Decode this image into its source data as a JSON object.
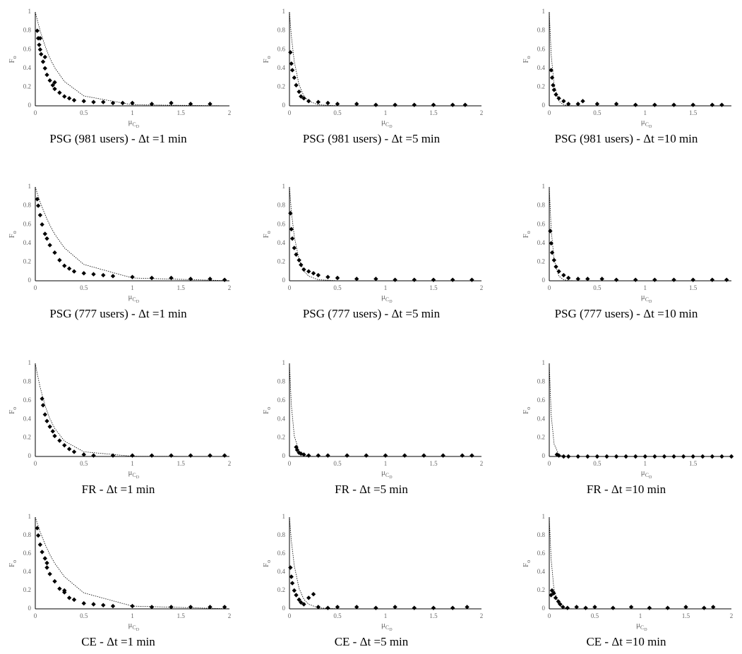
{
  "chart_data": [
    {
      "type": "scatter",
      "title": "PSG (981 users) - Δt =1 min",
      "y_label": "F",
      "y_label_sub": "o",
      "x_label": "μ",
      "x_label_sub": "C",
      "x_label_subsub": "D",
      "xlim": [
        0,
        2
      ],
      "xticks": [
        0,
        0.5,
        1,
        1.5,
        2
      ],
      "ylim": [
        0,
        1
      ],
      "yticks": [
        0,
        0.2,
        0.4,
        0.6,
        0.8,
        1
      ],
      "color": "#000000",
      "points": {
        "x": [
          0.02,
          0.03,
          0.04,
          0.05,
          0.06,
          0.08,
          0.1,
          0.12,
          0.15,
          0.18,
          0.2,
          0.25,
          0.3,
          0.35,
          0.4,
          0.5,
          0.6,
          0.7,
          0.8,
          0.9,
          1.0,
          1.2,
          1.4,
          1.6,
          1.8,
          0.05,
          0.1,
          0.2
        ],
        "values": [
          0.8,
          0.72,
          0.65,
          0.6,
          0.55,
          0.47,
          0.4,
          0.33,
          0.27,
          0.22,
          0.18,
          0.14,
          0.1,
          0.08,
          0.06,
          0.05,
          0.04,
          0.04,
          0.03,
          0.03,
          0.03,
          0.02,
          0.03,
          0.02,
          0.02,
          0.72,
          0.52,
          0.25
        ]
      },
      "fit": {
        "x": [
          0,
          0.02,
          0.05,
          0.1,
          0.15,
          0.2,
          0.3,
          0.5,
          1,
          2
        ],
        "values": [
          1,
          0.914,
          0.799,
          0.638,
          0.509,
          0.407,
          0.259,
          0.105,
          0.011,
          0
        ]
      }
    },
    {
      "type": "scatter",
      "title": "PSG (981 users) - Δt =5 min",
      "y_label": "F",
      "y_label_sub": "o",
      "x_label": "μ",
      "x_label_sub": "C",
      "x_label_subsub": "D",
      "xlim": [
        0,
        2
      ],
      "xticks": [
        0,
        0.5,
        1,
        1.5,
        2
      ],
      "ylim": [
        0,
        1
      ],
      "yticks": [
        0,
        0.2,
        0.4,
        0.6,
        0.8,
        1
      ],
      "color": "#000000",
      "points": {
        "x": [
          0.01,
          0.02,
          0.03,
          0.05,
          0.07,
          0.1,
          0.12,
          0.15,
          0.2,
          0.3,
          0.4,
          0.5,
          0.7,
          0.9,
          1.1,
          1.3,
          1.5,
          1.7,
          1.83
        ],
        "values": [
          0.57,
          0.45,
          0.38,
          0.3,
          0.22,
          0.15,
          0.1,
          0.08,
          0.05,
          0.04,
          0.03,
          0.02,
          0.02,
          0.01,
          0.01,
          0.01,
          0.01,
          0.01,
          0.01
        ]
      },
      "fit": {
        "x": [
          0,
          0.02,
          0.05,
          0.1,
          0.15,
          0.2,
          0.3,
          0.5,
          1,
          2
        ],
        "values": [
          1,
          0.741,
          0.472,
          0.223,
          0.105,
          0.05,
          0.011,
          0.001,
          0,
          0
        ]
      }
    },
    {
      "type": "scatter",
      "title": "PSG (981 users) - Δt =10 min",
      "y_label": "F",
      "y_label_sub": "o",
      "x_label": "μ",
      "x_label_sub": "C",
      "x_label_subsub": "D",
      "xlim": [
        0,
        1.9
      ],
      "xticks": [
        0,
        0.5,
        1,
        1.5
      ],
      "ylim": [
        0,
        1
      ],
      "yticks": [
        0,
        0.2,
        0.4,
        0.6,
        0.8,
        1
      ],
      "color": "#000000",
      "points": {
        "x": [
          0.02,
          0.03,
          0.04,
          0.05,
          0.07,
          0.1,
          0.15,
          0.2,
          0.3,
          0.35,
          0.5,
          0.7,
          0.9,
          1.1,
          1.3,
          1.5,
          1.7,
          1.8
        ],
        "values": [
          0.38,
          0.3,
          0.22,
          0.17,
          0.12,
          0.08,
          0.05,
          0.02,
          0.02,
          0.05,
          0.02,
          0.02,
          0.01,
          0.01,
          0.01,
          0.01,
          0.01,
          0.01
        ]
      },
      "fit": {
        "x": [
          0,
          0.02,
          0.05,
          0.1,
          0.15,
          0.2,
          0.3,
          0.5,
          1,
          1.9
        ],
        "values": [
          1,
          0.549,
          0.223,
          0.05,
          0.011,
          0.002,
          0,
          0,
          0,
          0
        ]
      }
    },
    {
      "type": "scatter",
      "title": "PSG (777 users) - Δt =1 min",
      "y_label": "F",
      "y_label_sub": "o",
      "x_label": "μ",
      "x_label_sub": "C",
      "x_label_subsub": "D",
      "xlim": [
        0,
        2
      ],
      "xticks": [
        0,
        0.5,
        1,
        1.5,
        2
      ],
      "ylim": [
        0,
        1
      ],
      "yticks": [
        0,
        0.2,
        0.4,
        0.6,
        0.8,
        1
      ],
      "color": "#000000",
      "points": {
        "x": [
          0.02,
          0.03,
          0.05,
          0.07,
          0.1,
          0.12,
          0.15,
          0.2,
          0.25,
          0.3,
          0.35,
          0.4,
          0.5,
          0.6,
          0.7,
          0.8,
          1.0,
          1.2,
          1.4,
          1.6,
          1.8,
          1.95
        ],
        "values": [
          0.87,
          0.8,
          0.7,
          0.6,
          0.5,
          0.45,
          0.38,
          0.3,
          0.22,
          0.16,
          0.13,
          0.1,
          0.08,
          0.07,
          0.06,
          0.05,
          0.04,
          0.03,
          0.03,
          0.02,
          0.02,
          0.01
        ]
      },
      "fit": {
        "x": [
          0,
          0.02,
          0.05,
          0.1,
          0.15,
          0.2,
          0.3,
          0.5,
          1,
          2
        ],
        "values": [
          1,
          0.932,
          0.839,
          0.705,
          0.592,
          0.497,
          0.35,
          0.174,
          0.03,
          0.001
        ]
      }
    },
    {
      "type": "scatter",
      "title": "PSG (777 users) - Δt =5 min",
      "y_label": "F",
      "y_label_sub": "o",
      "x_label": "μ",
      "x_label_sub": "C",
      "x_label_subsub": "D",
      "xlim": [
        0,
        2
      ],
      "xticks": [
        0,
        0.5,
        1,
        1.5,
        2
      ],
      "ylim": [
        0,
        1
      ],
      "yticks": [
        0,
        0.2,
        0.4,
        0.6,
        0.8,
        1
      ],
      "color": "#000000",
      "points": {
        "x": [
          0.01,
          0.02,
          0.03,
          0.05,
          0.07,
          0.1,
          0.12,
          0.15,
          0.2,
          0.25,
          0.3,
          0.4,
          0.5,
          0.7,
          0.9,
          1.1,
          1.3,
          1.5,
          1.7,
          1.9
        ],
        "values": [
          0.72,
          0.55,
          0.45,
          0.35,
          0.28,
          0.22,
          0.17,
          0.12,
          0.1,
          0.08,
          0.06,
          0.04,
          0.03,
          0.02,
          0.02,
          0.01,
          0.01,
          0.01,
          0.01,
          0.01
        ]
      },
      "fit": {
        "x": [
          0,
          0.02,
          0.05,
          0.1,
          0.15,
          0.2,
          0.3,
          0.5,
          1,
          2
        ],
        "values": [
          1,
          0.741,
          0.472,
          0.223,
          0.105,
          0.05,
          0.011,
          0.001,
          0,
          0
        ]
      }
    },
    {
      "type": "scatter",
      "title": "PSG (777 users) - Δt =10 min",
      "y_label": "F",
      "y_label_sub": "o",
      "x_label": "μ",
      "x_label_sub": "C",
      "x_label_subsub": "D",
      "xlim": [
        0,
        1.9
      ],
      "xticks": [
        0,
        0.5,
        1,
        1.5
      ],
      "ylim": [
        0,
        1
      ],
      "yticks": [
        0,
        0.2,
        0.4,
        0.6,
        0.8,
        1
      ],
      "color": "#000000",
      "points": {
        "x": [
          0.01,
          0.02,
          0.03,
          0.05,
          0.07,
          0.1,
          0.15,
          0.2,
          0.3,
          0.4,
          0.55,
          0.7,
          0.9,
          1.1,
          1.3,
          1.5,
          1.7,
          1.85
        ],
        "values": [
          0.53,
          0.4,
          0.3,
          0.22,
          0.15,
          0.1,
          0.06,
          0.03,
          0.02,
          0.02,
          0.02,
          0.01,
          0.01,
          0.01,
          0.01,
          0.01,
          0.01,
          0.01
        ]
      },
      "fit": {
        "x": [
          0,
          0.02,
          0.05,
          0.1,
          0.15,
          0.2,
          0.3,
          0.5,
          1,
          1.9
        ],
        "values": [
          1,
          0.549,
          0.223,
          0.05,
          0.011,
          0.002,
          0,
          0,
          0,
          0
        ]
      }
    },
    {
      "type": "scatter",
      "title": "FR - Δt =1 min",
      "y_label": "F",
      "y_label_sub": "o",
      "x_label": "μ",
      "x_label_sub": "C",
      "x_label_subsub": "D",
      "xlim": [
        0,
        2
      ],
      "xticks": [
        0,
        0.5,
        1,
        1.5,
        2
      ],
      "ylim": [
        0,
        1
      ],
      "yticks": [
        0,
        0.2,
        0.4,
        0.6,
        0.8,
        1
      ],
      "color": "#000000",
      "points": {
        "x": [
          0.07,
          0.08,
          0.1,
          0.12,
          0.15,
          0.18,
          0.2,
          0.25,
          0.3,
          0.35,
          0.4,
          0.5,
          0.6,
          0.8,
          1.0,
          1.2,
          1.4,
          1.6,
          1.8,
          1.95
        ],
        "values": [
          0.62,
          0.55,
          0.45,
          0.38,
          0.32,
          0.27,
          0.22,
          0.17,
          0.12,
          0.08,
          0.05,
          0.02,
          0.01,
          0.01,
          0.01,
          0.01,
          0.01,
          0.01,
          0.01,
          0.01
        ]
      },
      "fit": {
        "x": [
          0,
          0.02,
          0.05,
          0.1,
          0.15,
          0.2,
          0.3,
          0.5,
          1,
          2
        ],
        "values": [
          1,
          0.887,
          0.741,
          0.549,
          0.407,
          0.301,
          0.165,
          0.05,
          0.002,
          0
        ]
      }
    },
    {
      "type": "scatter",
      "title": "FR - Δt =5 min",
      "y_label": "F",
      "y_label_sub": "o",
      "x_label": "μ",
      "x_label_sub": "C",
      "x_label_subsub": "D",
      "xlim": [
        0,
        2
      ],
      "xticks": [
        0,
        0.5,
        1,
        1.5,
        2
      ],
      "ylim": [
        0,
        1
      ],
      "yticks": [
        0,
        0.2,
        0.4,
        0.6,
        0.8,
        1
      ],
      "color": "#000000",
      "points": {
        "x": [
          0.07,
          0.08,
          0.1,
          0.12,
          0.15,
          0.2,
          0.3,
          0.4,
          0.6,
          0.8,
          1.0,
          1.2,
          1.4,
          1.6,
          1.8,
          1.9
        ],
        "values": [
          0.1,
          0.07,
          0.04,
          0.03,
          0.02,
          0.01,
          0.01,
          0.01,
          0.01,
          0.01,
          0.01,
          0.01,
          0.01,
          0.01,
          0.01,
          0.01
        ]
      },
      "fit": {
        "x": [
          0,
          0.02,
          0.05,
          0.1,
          0.15,
          0.2,
          0.3,
          0.5,
          1,
          2
        ],
        "values": [
          1,
          0.549,
          0.223,
          0.05,
          0.011,
          0.002,
          0,
          0,
          0,
          0
        ]
      }
    },
    {
      "type": "scatter",
      "title": "FR - Δt =10 min",
      "y_label": "F",
      "y_label_sub": "o",
      "x_label": "μ",
      "x_label_sub": "C",
      "x_label_subsub": "D",
      "xlim": [
        0,
        1.9
      ],
      "xticks": [
        0,
        0.5,
        1,
        1.5
      ],
      "ylim": [
        0,
        1
      ],
      "yticks": [
        0,
        0.2,
        0.4,
        0.6,
        0.8,
        1
      ],
      "color": "#000000",
      "points": {
        "x": [
          0.08,
          0.1,
          0.15,
          0.2,
          0.3,
          0.4,
          0.5,
          0.6,
          0.7,
          0.8,
          0.9,
          1.0,
          1.1,
          1.2,
          1.3,
          1.4,
          1.5,
          1.6,
          1.7,
          1.8,
          1.9
        ],
        "values": [
          0.02,
          0.01,
          0,
          0,
          0,
          0,
          0,
          0,
          0,
          0,
          0,
          0,
          0,
          0,
          0,
          0,
          0,
          0,
          0,
          0,
          0
        ]
      },
      "fit": {
        "x": [
          0,
          0.02,
          0.05,
          0.1,
          0.15,
          0.2,
          0.3,
          0.5,
          1,
          1.9
        ],
        "values": [
          1,
          0.449,
          0.135,
          0.018,
          0.002,
          0,
          0,
          0,
          0,
          0
        ]
      }
    },
    {
      "type": "scatter",
      "title": "CE - Δt =1 min",
      "y_label": "F",
      "y_label_sub": "o",
      "x_label": "μ",
      "x_label_sub": "C",
      "x_label_subsub": "D",
      "xlim": [
        0,
        2
      ],
      "xticks": [
        0,
        0.5,
        1,
        1.5,
        2
      ],
      "ylim": [
        0,
        1
      ],
      "yticks": [
        0,
        0.2,
        0.4,
        0.6,
        0.8,
        1
      ],
      "color": "#000000",
      "points": {
        "x": [
          0.02,
          0.03,
          0.05,
          0.07,
          0.1,
          0.12,
          0.15,
          0.2,
          0.25,
          0.3,
          0.35,
          0.4,
          0.5,
          0.6,
          0.7,
          0.8,
          1.0,
          1.2,
          1.4,
          1.6,
          1.8,
          1.95,
          0.12,
          0.3
        ],
        "values": [
          0.88,
          0.8,
          0.7,
          0.62,
          0.55,
          0.45,
          0.38,
          0.3,
          0.22,
          0.18,
          0.12,
          0.1,
          0.06,
          0.05,
          0.04,
          0.03,
          0.03,
          0.02,
          0.02,
          0.02,
          0.02,
          0.02,
          0.5,
          0.2
        ]
      },
      "fit": {
        "x": [
          0,
          0.02,
          0.05,
          0.1,
          0.15,
          0.2,
          0.3,
          0.5,
          1,
          2
        ],
        "values": [
          1,
          0.932,
          0.839,
          0.705,
          0.592,
          0.497,
          0.35,
          0.174,
          0.03,
          0.001
        ]
      }
    },
    {
      "type": "scatter",
      "title": "CE - Δt =5 min",
      "y_label": "F",
      "y_label_sub": "o",
      "x_label": "μ",
      "x_label_sub": "C",
      "x_label_subsub": "D",
      "xlim": [
        0,
        2
      ],
      "xticks": [
        0,
        0.5,
        1,
        1.5,
        2
      ],
      "ylim": [
        0,
        1
      ],
      "yticks": [
        0,
        0.2,
        0.4,
        0.6,
        0.8,
        1
      ],
      "color": "#000000",
      "points": {
        "x": [
          0.01,
          0.02,
          0.03,
          0.05,
          0.07,
          0.1,
          0.12,
          0.15,
          0.2,
          0.25,
          0.3,
          0.4,
          0.5,
          0.7,
          0.9,
          1.1,
          1.3,
          1.5,
          1.7,
          1.85
        ],
        "values": [
          0.45,
          0.35,
          0.28,
          0.2,
          0.15,
          0.1,
          0.07,
          0.05,
          0.12,
          0.16,
          0.02,
          0.01,
          0.02,
          0.02,
          0.01,
          0.02,
          0.01,
          0.01,
          0.01,
          0.02
        ]
      },
      "fit": {
        "x": [
          0,
          0.02,
          0.05,
          0.1,
          0.15,
          0.2,
          0.3,
          0.5,
          1,
          2
        ],
        "values": [
          1,
          0.741,
          0.472,
          0.223,
          0.105,
          0.05,
          0.011,
          0.001,
          0,
          0
        ]
      }
    },
    {
      "type": "scatter",
      "title": "CE - Δt =10 min",
      "y_label": "F",
      "y_label_sub": "o",
      "x_label": "μ",
      "x_label_sub": "C",
      "x_label_subsub": "D",
      "xlim": [
        0,
        2
      ],
      "xticks": [
        0,
        0.5,
        1,
        1.5,
        2
      ],
      "ylim": [
        0,
        1
      ],
      "yticks": [
        0,
        0.2,
        0.4,
        0.6,
        0.8,
        1
      ],
      "color": "#000000",
      "points": {
        "x": [
          0.02,
          0.03,
          0.05,
          0.07,
          0.1,
          0.12,
          0.15,
          0.2,
          0.3,
          0.4,
          0.5,
          0.7,
          0.9,
          1.1,
          1.3,
          1.5,
          1.7,
          1.8
        ],
        "values": [
          0.15,
          0.2,
          0.17,
          0.12,
          0.08,
          0.05,
          0.02,
          0.01,
          0.02,
          0.01,
          0.02,
          0.01,
          0.02,
          0.01,
          0.01,
          0.02,
          0.01,
          0.02
        ]
      },
      "fit": {
        "x": [
          0,
          0.02,
          0.05,
          0.1,
          0.15,
          0.2,
          0.3,
          0.5,
          1,
          2
        ],
        "values": [
          1,
          0.549,
          0.223,
          0.05,
          0.011,
          0.002,
          0,
          0,
          0,
          0
        ]
      }
    }
  ]
}
